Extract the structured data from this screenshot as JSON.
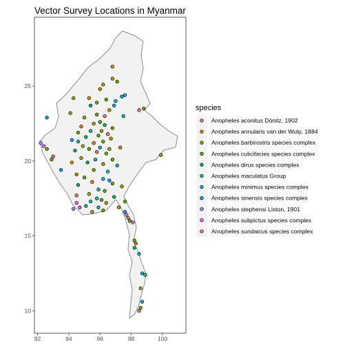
{
  "map": {
    "title": "Vector Survey Locations in Myanmar",
    "x_axis": {
      "range": [
        91.8,
        101.5
      ],
      "ticks": [
        "92",
        "94",
        "96",
        "98",
        "100"
      ],
      "tick_values": [
        92,
        94,
        96,
        98,
        100
      ]
    },
    "y_axis": {
      "range": [
        8.5,
        29.6
      ],
      "ticks": [
        "10",
        "15",
        "20",
        "25"
      ],
      "tick_values": [
        10,
        15,
        20,
        25
      ]
    },
    "grid": false,
    "panel_border": true,
    "land_fill": "#f2f2f2",
    "land_stroke": "#8c8c8c",
    "point_stroke": "#000000"
  },
  "legend": {
    "title": "species",
    "placement": "right",
    "items": [
      {
        "label": "Anopheles aconitus Dönitz, 1902",
        "color": "#F8766D"
      },
      {
        "label": "Anopheles annularis van der Wulp, 1884",
        "color": "#DB8E00"
      },
      {
        "label": "Anopheles barbirostris species complex",
        "color": "#AEA200"
      },
      {
        "label": "Anopheles culicifacies species complex",
        "color": "#64B200"
      },
      {
        "label": "Anopheles dirus species complex",
        "color": "#00BD5C"
      },
      {
        "label": "Anopheles maculatus Group",
        "color": "#00C1A7"
      },
      {
        "label": "Anopheles minimus species complex",
        "color": "#00BADE"
      },
      {
        "label": "Anopheles sinensis species complex",
        "color": "#00A6FF"
      },
      {
        "label": "Anopheles stephensi Liston, 1901",
        "color": "#B385FF"
      },
      {
        "label": "Anopheles subpictus species complex",
        "color": "#EF67EB"
      },
      {
        "label": "Anopheles sundaicus species complex",
        "color": "#FF63B6"
      }
    ]
  },
  "chart_data": {
    "type": "scatter",
    "title": "Vector Survey Locations in Myanmar",
    "xlim": [
      91.8,
      101.5
    ],
    "ylim": [
      8.5,
      29.6
    ],
    "legend_placement": "right",
    "points": [
      {
        "lon": 96.8,
        "lat": 26.3,
        "s": 1
      },
      {
        "lon": 96.8,
        "lat": 25.5,
        "s": 2
      },
      {
        "lon": 97.1,
        "lat": 25.3,
        "s": 3
      },
      {
        "lon": 96.2,
        "lat": 25.1,
        "s": 2
      },
      {
        "lon": 96.0,
        "lat": 24.8,
        "s": 1
      },
      {
        "lon": 97.4,
        "lat": 24.3,
        "s": 7
      },
      {
        "lon": 97.6,
        "lat": 24.4,
        "s": 6
      },
      {
        "lon": 94.3,
        "lat": 24.2,
        "s": 2
      },
      {
        "lon": 95.3,
        "lat": 24.2,
        "s": 1
      },
      {
        "lon": 96.4,
        "lat": 24.1,
        "s": 3
      },
      {
        "lon": 97.0,
        "lat": 24.0,
        "s": 5
      },
      {
        "lon": 95.8,
        "lat": 23.9,
        "s": 3
      },
      {
        "lon": 96.9,
        "lat": 23.7,
        "s": 6
      },
      {
        "lon": 95.4,
        "lat": 23.7,
        "s": 4
      },
      {
        "lon": 98.8,
        "lat": 23.5,
        "s": 3
      },
      {
        "lon": 98.5,
        "lat": 23.4,
        "s": 0
      },
      {
        "lon": 94.1,
        "lat": 23.2,
        "s": 2
      },
      {
        "lon": 96.6,
        "lat": 23.4,
        "s": 1
      },
      {
        "lon": 95.8,
        "lat": 23.1,
        "s": 3
      },
      {
        "lon": 96.3,
        "lat": 23.0,
        "s": 0
      },
      {
        "lon": 97.5,
        "lat": 23.0,
        "s": 5
      },
      {
        "lon": 95.0,
        "lat": 22.9,
        "s": 2
      },
      {
        "lon": 92.6,
        "lat": 22.9,
        "s": 7
      },
      {
        "lon": 96.0,
        "lat": 22.6,
        "s": 3
      },
      {
        "lon": 95.6,
        "lat": 22.5,
        "s": 2
      },
      {
        "lon": 96.3,
        "lat": 22.4,
        "s": 4
      },
      {
        "lon": 94.8,
        "lat": 22.3,
        "s": 1
      },
      {
        "lon": 96.8,
        "lat": 22.2,
        "s": 3
      },
      {
        "lon": 95.4,
        "lat": 22.0,
        "s": 5
      },
      {
        "lon": 96.1,
        "lat": 22.0,
        "s": 2
      },
      {
        "lon": 94.6,
        "lat": 21.9,
        "s": 3
      },
      {
        "lon": 96.5,
        "lat": 21.8,
        "s": 0
      },
      {
        "lon": 95.9,
        "lat": 21.7,
        "s": 3
      },
      {
        "lon": 95.1,
        "lat": 21.6,
        "s": 4
      },
      {
        "lon": 96.7,
        "lat": 21.5,
        "s": 2
      },
      {
        "lon": 94.2,
        "lat": 21.4,
        "s": 7
      },
      {
        "lon": 94.6,
        "lat": 21.3,
        "s": 5
      },
      {
        "lon": 96.2,
        "lat": 21.3,
        "s": 3
      },
      {
        "lon": 95.6,
        "lat": 21.2,
        "s": 1
      },
      {
        "lon": 92.2,
        "lat": 21.2,
        "s": 8
      },
      {
        "lon": 92.4,
        "lat": 21.0,
        "s": 9
      },
      {
        "lon": 92.6,
        "lat": 20.8,
        "s": 3
      },
      {
        "lon": 94.9,
        "lat": 21.0,
        "s": 2
      },
      {
        "lon": 96.0,
        "lat": 20.9,
        "s": 5
      },
      {
        "lon": 97.3,
        "lat": 20.9,
        "s": 1
      },
      {
        "lon": 95.3,
        "lat": 20.8,
        "s": 3
      },
      {
        "lon": 96.6,
        "lat": 20.8,
        "s": 2
      },
      {
        "lon": 94.4,
        "lat": 20.7,
        "s": 4
      },
      {
        "lon": 95.8,
        "lat": 20.6,
        "s": 0
      },
      {
        "lon": 96.4,
        "lat": 20.5,
        "s": 3
      },
      {
        "lon": 93.0,
        "lat": 20.3,
        "s": 10
      },
      {
        "lon": 92.9,
        "lat": 20.1,
        "s": 3
      },
      {
        "lon": 94.8,
        "lat": 20.2,
        "s": 2
      },
      {
        "lon": 95.7,
        "lat": 20.1,
        "s": 5
      },
      {
        "lon": 96.8,
        "lat": 20.1,
        "s": 3
      },
      {
        "lon": 94.2,
        "lat": 19.9,
        "s": 1
      },
      {
        "lon": 95.2,
        "lat": 19.9,
        "s": 4
      },
      {
        "lon": 96.2,
        "lat": 19.8,
        "s": 2
      },
      {
        "lon": 97.1,
        "lat": 19.7,
        "s": 6
      },
      {
        "lon": 99.9,
        "lat": 20.4,
        "s": 3
      },
      {
        "lon": 93.5,
        "lat": 19.4,
        "s": 7
      },
      {
        "lon": 95.6,
        "lat": 19.4,
        "s": 3
      },
      {
        "lon": 96.5,
        "lat": 19.3,
        "s": 5
      },
      {
        "lon": 94.5,
        "lat": 19.1,
        "s": 2
      },
      {
        "lon": 95.0,
        "lat": 18.9,
        "s": 3
      },
      {
        "lon": 96.2,
        "lat": 18.8,
        "s": 6
      },
      {
        "lon": 96.6,
        "lat": 18.7,
        "s": 7
      },
      {
        "lon": 95.5,
        "lat": 18.6,
        "s": 1
      },
      {
        "lon": 96.8,
        "lat": 18.5,
        "s": 3
      },
      {
        "lon": 94.6,
        "lat": 18.4,
        "s": 4
      },
      {
        "lon": 97.4,
        "lat": 18.3,
        "s": 2
      },
      {
        "lon": 95.9,
        "lat": 18.1,
        "s": 5
      },
      {
        "lon": 96.3,
        "lat": 18.0,
        "s": 3
      },
      {
        "lon": 95.3,
        "lat": 17.8,
        "s": 2
      },
      {
        "lon": 94.5,
        "lat": 17.7,
        "s": 0
      },
      {
        "lon": 96.9,
        "lat": 17.6,
        "s": 4
      },
      {
        "lon": 95.8,
        "lat": 17.5,
        "s": 5
      },
      {
        "lon": 96.1,
        "lat": 17.4,
        "s": 3
      },
      {
        "lon": 95.4,
        "lat": 17.3,
        "s": 6
      },
      {
        "lon": 94.5,
        "lat": 17.2,
        "s": 9
      },
      {
        "lon": 96.4,
        "lat": 17.2,
        "s": 2
      },
      {
        "lon": 97.6,
        "lat": 17.3,
        "s": 3
      },
      {
        "lon": 95.1,
        "lat": 17.0,
        "s": 4
      },
      {
        "lon": 94.7,
        "lat": 16.9,
        "s": 10
      },
      {
        "lon": 95.9,
        "lat": 16.9,
        "s": 5
      },
      {
        "lon": 97.2,
        "lat": 16.9,
        "s": 1
      },
      {
        "lon": 94.3,
        "lat": 16.8,
        "s": 8
      },
      {
        "lon": 96.2,
        "lat": 16.7,
        "s": 3
      },
      {
        "lon": 95.5,
        "lat": 16.6,
        "s": 2
      },
      {
        "lon": 97.6,
        "lat": 16.6,
        "s": 7
      },
      {
        "lon": 97.7,
        "lat": 16.4,
        "s": 10
      },
      {
        "lon": 97.8,
        "lat": 16.2,
        "s": 0
      },
      {
        "lon": 97.9,
        "lat": 16.0,
        "s": 3
      },
      {
        "lon": 98.1,
        "lat": 15.9,
        "s": 9
      },
      {
        "lon": 98.2,
        "lat": 14.7,
        "s": 3
      },
      {
        "lon": 98.3,
        "lat": 14.5,
        "s": 1
      },
      {
        "lon": 98.2,
        "lat": 14.2,
        "s": 4
      },
      {
        "lon": 98.5,
        "lat": 13.8,
        "s": 6
      },
      {
        "lon": 98.7,
        "lat": 12.5,
        "s": 7
      },
      {
        "lon": 98.9,
        "lat": 12.4,
        "s": 5
      },
      {
        "lon": 98.6,
        "lat": 11.5,
        "s": 2
      },
      {
        "lon": 98.7,
        "lat": 10.6,
        "s": 6
      },
      {
        "lon": 98.6,
        "lat": 10.2,
        "s": 3
      },
      {
        "lon": 98.5,
        "lat": 10.0,
        "s": 10
      }
    ]
  }
}
